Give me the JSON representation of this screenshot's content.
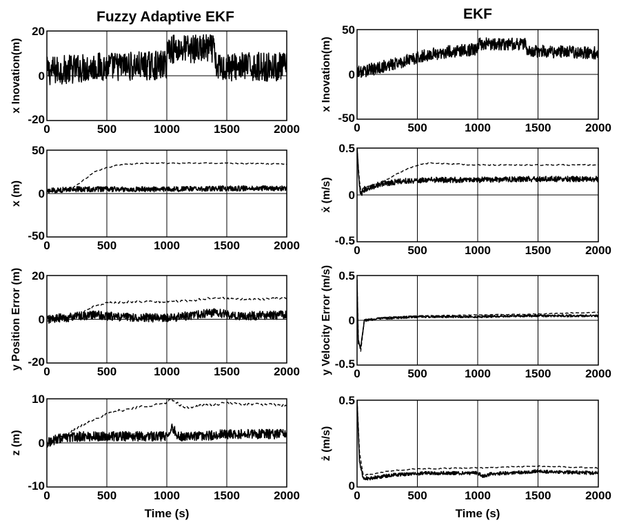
{
  "figure": {
    "column_titles": [
      "Fuzzy Adaptive EKF",
      "EKF"
    ],
    "row_ylabels_left": [
      "x Inovation(m)",
      "x (m)",
      "y Position Error (m)",
      "z (m)"
    ],
    "row_ylabels_right": [
      "x Inovation(m)",
      "ẋ (m/s)",
      "y Velocity Error (m/s)",
      "ż (m/s)"
    ],
    "xlabel": "Time (s)"
  },
  "chart_data": [
    {
      "type": "line",
      "panel": "left-1",
      "title": "Fuzzy Adaptive EKF",
      "xlabel": "",
      "ylabel": "x Inovation(m)",
      "xlim": [
        0,
        2000
      ],
      "ylim": [
        -20,
        20
      ],
      "xticks": [
        0,
        500,
        1000,
        1500,
        2000
      ],
      "yticks": [
        -20,
        0,
        20
      ],
      "grid": true,
      "legend": "none",
      "series": [
        {
          "style": "solid",
          "noise": 6.5,
          "x": [
            0,
            400,
            900,
            999,
            1001,
            1380,
            1399,
            1401,
            1700,
            2000
          ],
          "y": [
            2,
            4,
            4.5,
            5,
            12,
            12,
            12,
            4,
            4,
            4
          ]
        }
      ]
    },
    {
      "type": "line",
      "panel": "left-2",
      "title": "",
      "xlabel": "",
      "ylabel": "x (m)",
      "xlim": [
        0,
        2000
      ],
      "ylim": [
        -50,
        50
      ],
      "xticks": [
        0,
        500,
        1000,
        1500,
        2000
      ],
      "yticks": [
        -50,
        0,
        50
      ],
      "grid": true,
      "legend": "none",
      "series": [
        {
          "style": "dashed",
          "noise": 0.6,
          "x": [
            0,
            200,
            300,
            400,
            500,
            600,
            700,
            800,
            1000,
            1500,
            2000
          ],
          "y": [
            2,
            5,
            15,
            25,
            30,
            33,
            34,
            35,
            35,
            35,
            34
          ]
        },
        {
          "style": "solid",
          "noise": 3,
          "x": [
            0,
            200,
            500,
            1000,
            1500,
            2000
          ],
          "y": [
            3,
            5,
            5,
            5,
            6,
            6
          ]
        }
      ]
    },
    {
      "type": "line",
      "panel": "left-3",
      "title": "",
      "xlabel": "",
      "ylabel": "y Position Error (m)",
      "xlim": [
        0,
        2000
      ],
      "ylim": [
        -20,
        20
      ],
      "xticks": [
        0,
        500,
        1000,
        1500,
        2000
      ],
      "yticks": [
        -20,
        0,
        20
      ],
      "grid": true,
      "legend": "none",
      "series": [
        {
          "style": "dashed",
          "noise": 0.5,
          "x": [
            0,
            200,
            300,
            400,
            500,
            700,
            1000,
            1200,
            1400,
            1600,
            2000
          ],
          "y": [
            -1,
            1,
            3,
            6,
            7.5,
            8,
            8,
            8.5,
            10,
            9,
            9.5
          ]
        },
        {
          "style": "solid",
          "noise": 2,
          "x": [
            0,
            200,
            400,
            600,
            1000,
            1400,
            1600,
            2000
          ],
          "y": [
            0,
            1,
            2,
            1,
            0.5,
            3,
            1.5,
            2
          ]
        }
      ]
    },
    {
      "type": "line",
      "panel": "left-4",
      "title": "",
      "xlabel": "Time (s)",
      "ylabel": "z (m)",
      "xlim": [
        0,
        2000
      ],
      "ylim": [
        -10,
        10
      ],
      "xticks": [
        0,
        500,
        1000,
        1500,
        2000
      ],
      "yticks": [
        -10,
        0,
        10
      ],
      "grid": true,
      "legend": "none",
      "series": [
        {
          "style": "dashed",
          "noise": 0.3,
          "x": [
            0,
            100,
            200,
            300,
            400,
            500,
            600,
            700,
            800,
            1000,
            1030,
            1150,
            1300,
            1500,
            2000
          ],
          "y": [
            0,
            1,
            2.5,
            4,
            5.5,
            6.5,
            7.3,
            7.8,
            8.3,
            9,
            10,
            8,
            8.5,
            9,
            8.5
          ]
        },
        {
          "style": "solid",
          "noise": 1.1,
          "x": [
            0,
            100,
            300,
            600,
            1000,
            1040,
            1100,
            1300,
            1500,
            2000
          ],
          "y": [
            0,
            1,
            1.5,
            1.5,
            1.5,
            3.5,
            1.5,
            1.5,
            2,
            2
          ]
        }
      ]
    },
    {
      "type": "line",
      "panel": "right-1",
      "title": "EKF",
      "xlabel": "",
      "ylabel": "x Inovation(m)",
      "xlim": [
        0,
        2000
      ],
      "ylim": [
        -50,
        50
      ],
      "xticks": [
        0,
        500,
        1000,
        1500,
        2000
      ],
      "yticks": [
        -50,
        0,
        50
      ],
      "grid": true,
      "legend": "none",
      "series": [
        {
          "style": "solid",
          "noise": 7,
          "x": [
            0,
            200,
            400,
            600,
            800,
            999,
            1001,
            1399,
            1401,
            1700,
            2000
          ],
          "y": [
            2,
            8,
            15,
            22,
            26,
            28,
            34,
            34,
            26,
            25,
            24
          ]
        }
      ]
    },
    {
      "type": "line",
      "panel": "right-2",
      "title": "",
      "xlabel": "",
      "ylabel": "ẋ (m/s)",
      "xlim": [
        0,
        2000
      ],
      "ylim": [
        -0.5,
        0.5
      ],
      "xticks": [
        0,
        500,
        1000,
        1500,
        2000
      ],
      "yticks": [
        -0.5,
        0,
        0.5
      ],
      "grid": true,
      "legend": "none",
      "series": [
        {
          "style": "dashed",
          "noise": 0.006,
          "x": [
            0,
            15,
            30,
            60,
            200,
            300,
            400,
            500,
            600,
            800,
            1000,
            1500,
            2000
          ],
          "y": [
            0.5,
            0.2,
            0.05,
            0.08,
            0.13,
            0.2,
            0.27,
            0.32,
            0.34,
            0.33,
            0.32,
            0.32,
            0.32
          ]
        },
        {
          "style": "solid",
          "noise": 0.03,
          "x": [
            0,
            15,
            30,
            60,
            200,
            400,
            600,
            1000,
            1500,
            2000
          ],
          "y": [
            0.5,
            0.15,
            0.0,
            0.06,
            0.12,
            0.15,
            0.16,
            0.16,
            0.17,
            0.17
          ]
        }
      ]
    },
    {
      "type": "line",
      "panel": "right-3",
      "title": "",
      "xlabel": "",
      "ylabel": "y Velocity Error (m/s)",
      "xlim": [
        0,
        2000
      ],
      "ylim": [
        -0.5,
        0.5
      ],
      "xticks": [
        0,
        500,
        1000,
        1500,
        2000
      ],
      "yticks": [
        -0.5,
        0,
        0.5
      ],
      "grid": true,
      "legend": "none",
      "series": [
        {
          "style": "dashed",
          "noise": 0.004,
          "x": [
            0,
            10,
            30,
            60,
            200,
            500,
            1000,
            1500,
            2000
          ],
          "y": [
            0.45,
            -0.2,
            -0.35,
            0.0,
            0.03,
            0.05,
            0.06,
            0.07,
            0.09
          ]
        },
        {
          "style": "solid",
          "noise": 0.012,
          "x": [
            0,
            10,
            30,
            60,
            200,
            500,
            1000,
            1500,
            2000
          ],
          "y": [
            0.45,
            -0.25,
            -0.3,
            0.0,
            0.02,
            0.04,
            0.04,
            0.05,
            0.05
          ]
        }
      ]
    },
    {
      "type": "line",
      "panel": "right-4",
      "title": "",
      "xlabel": "Time (s)",
      "ylabel": "ż (m/s)",
      "xlim": [
        0,
        2000
      ],
      "ylim": [
        0,
        0.5
      ],
      "xticks": [
        0,
        500,
        1000,
        1500,
        2000
      ],
      "yticks": [
        0,
        0.5
      ],
      "grid": true,
      "legend": "none",
      "series": [
        {
          "style": "dashed",
          "noise": 0.003,
          "x": [
            0,
            20,
            50,
            100,
            200,
            300,
            400,
            500,
            1000,
            1500,
            2000
          ],
          "y": [
            0.5,
            0.2,
            0.07,
            0.07,
            0.085,
            0.095,
            0.1,
            0.105,
            0.11,
            0.12,
            0.11
          ]
        },
        {
          "style": "solid",
          "noise": 0.01,
          "x": [
            0,
            20,
            50,
            100,
            300,
            600,
            1000,
            1050,
            1100,
            1500,
            2000
          ],
          "y": [
            0.5,
            0.15,
            0.05,
            0.05,
            0.07,
            0.08,
            0.08,
            0.06,
            0.075,
            0.09,
            0.08
          ]
        }
      ]
    }
  ]
}
